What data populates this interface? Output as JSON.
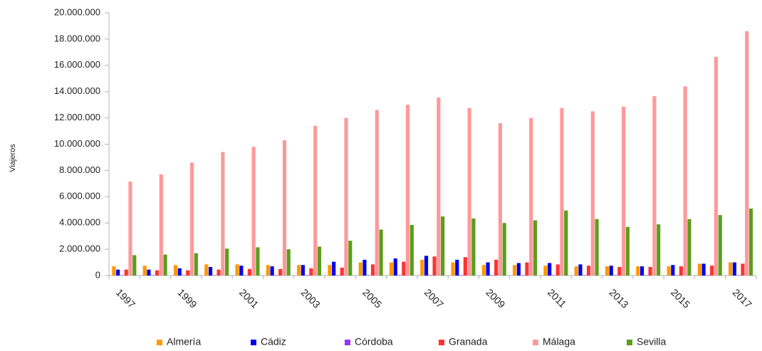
{
  "chart_data": {
    "type": "bar",
    "y_label": "Viajeros",
    "categories": [
      "1997",
      null,
      "1999",
      null,
      "2001",
      null,
      "2003",
      null,
      "2005",
      null,
      "2007",
      null,
      "2009",
      null,
      "2011",
      null,
      "2013",
      null,
      "2015",
      null,
      "2017"
    ],
    "series": [
      {
        "name": "Almería",
        "color": "#ff9900",
        "values": [
          700000,
          750000,
          800000,
          850000,
          850000,
          800000,
          800000,
          800000,
          1000000,
          1000000,
          1200000,
          1000000,
          800000,
          800000,
          750000,
          700000,
          700000,
          700000,
          700000,
          900000,
          1000000
        ]
      },
      {
        "name": "Cádiz",
        "color": "#0000ee",
        "values": [
          450000,
          450000,
          550000,
          650000,
          750000,
          700000,
          800000,
          1050000,
          1200000,
          1300000,
          1500000,
          1200000,
          1000000,
          950000,
          950000,
          850000,
          750000,
          700000,
          800000,
          900000,
          1000000
        ]
      },
      {
        "name": "Córdoba",
        "color": "#9933ff",
        "values": [
          30000,
          30000,
          30000,
          30000,
          30000,
          30000,
          30000,
          30000,
          30000,
          30000,
          30000,
          30000,
          30000,
          30000,
          30000,
          30000,
          30000,
          30000,
          30000,
          30000,
          30000
        ]
      },
      {
        "name": "Granada",
        "color": "#ff3333",
        "values": [
          450000,
          400000,
          400000,
          450000,
          500000,
          500000,
          550000,
          600000,
          850000,
          1050000,
          1450000,
          1400000,
          1200000,
          1000000,
          850000,
          750000,
          650000,
          650000,
          700000,
          750000,
          900000
        ]
      },
      {
        "name": "Málaga",
        "color": "#ff9999",
        "values": [
          7150000,
          7700000,
          8600000,
          9400000,
          9800000,
          10300000,
          11400000,
          12000000,
          12600000,
          13000000,
          13550000,
          12750000,
          11600000,
          12000000,
          12750000,
          12500000,
          12850000,
          13650000,
          14400000,
          16650000,
          18600000
        ]
      },
      {
        "name": "Sevilla",
        "color": "#5a9e1a",
        "values": [
          1550000,
          1600000,
          1700000,
          2050000,
          2150000,
          2000000,
          2200000,
          2650000,
          3500000,
          3850000,
          4500000,
          4350000,
          4000000,
          4200000,
          4950000,
          4300000,
          3700000,
          3900000,
          4300000,
          4600000,
          5100000
        ]
      }
    ],
    "ylim": [
      0,
      20000000
    ],
    "yticks": [
      {
        "value": 0,
        "label": "0"
      },
      {
        "value": 2000000,
        "label": "2.000.000"
      },
      {
        "value": 4000000,
        "label": "4.000.000"
      },
      {
        "value": 6000000,
        "label": "6.000.000"
      },
      {
        "value": 8000000,
        "label": "8.000.000"
      },
      {
        "value": 10000000,
        "label": "10.000.000"
      },
      {
        "value": 12000000,
        "label": "12.000.000"
      },
      {
        "value": 14000000,
        "label": "14.000.000"
      },
      {
        "value": 16000000,
        "label": "16.000.000"
      },
      {
        "value": 18000000,
        "label": "18.000.000"
      },
      {
        "value": 20000000,
        "label": "20.000.000"
      }
    ],
    "grid": false,
    "legend": "bottom"
  }
}
